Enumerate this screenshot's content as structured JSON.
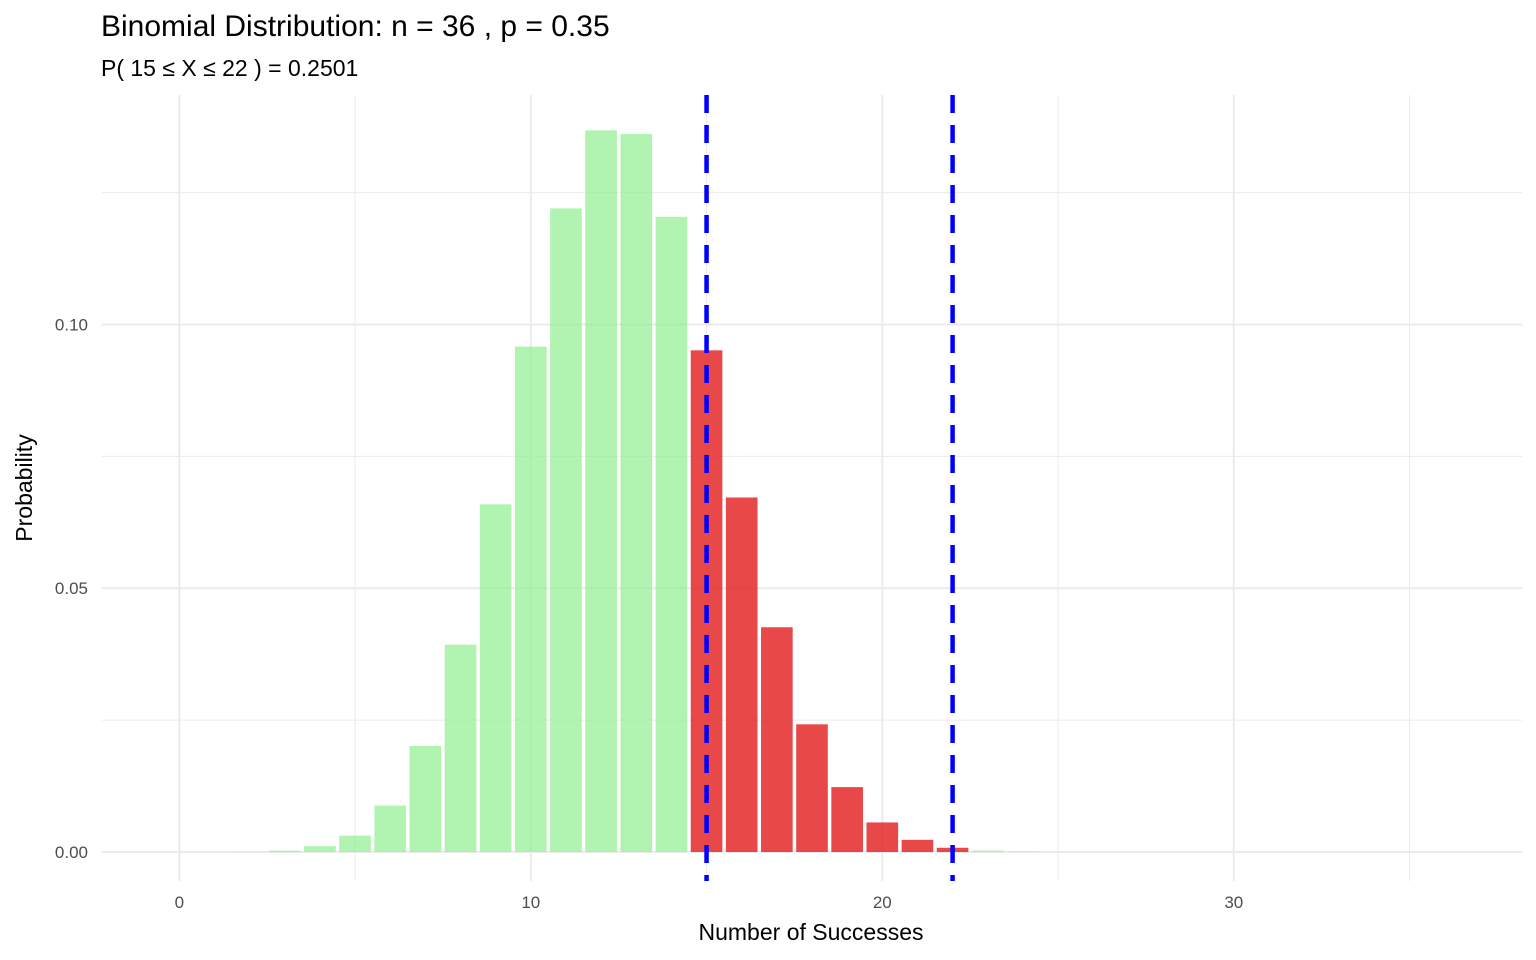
{
  "chart_data": {
    "type": "bar",
    "title": "Binomial Distribution: n = 36 , p = 0.35",
    "subtitle": "P( 15  ≤ X ≤  22 ) = 0.2501",
    "xlabel": "Number of Successes",
    "ylabel": "Probability",
    "xlim": [
      -2.2,
      38.2
    ],
    "ylim": [
      -0.0055,
      0.1435
    ],
    "x_ticks": [
      0,
      10,
      20,
      30
    ],
    "x_tick_labels": [
      "0",
      "10",
      "20",
      "30"
    ],
    "y_ticks": [
      0.0,
      0.05,
      0.1
    ],
    "y_tick_labels": [
      "0.00",
      "0.05",
      "0.10"
    ],
    "grid": true,
    "legend": "none",
    "x": [
      0,
      1,
      2,
      3,
      4,
      5,
      6,
      7,
      8,
      9,
      10,
      11,
      12,
      13,
      14,
      15,
      16,
      17,
      18,
      19,
      20,
      21,
      22,
      23,
      24,
      25,
      26,
      27,
      28,
      29,
      30,
      31,
      32,
      33,
      34,
      35,
      36
    ],
    "values": [
      2e-07,
      4e-06,
      4e-05,
      0.00025,
      0.0011,
      0.0031,
      0.0088,
      0.0201,
      0.0393,
      0.0659,
      0.0958,
      0.122,
      0.1368,
      0.1361,
      0.1204,
      0.0951,
      0.0672,
      0.0426,
      0.0242,
      0.0123,
      0.0056,
      0.0023,
      0.0008,
      0.00026,
      8e-05,
      2e-05,
      4e-06,
      8e-07,
      1e-07,
      0,
      0,
      0,
      0,
      0,
      0,
      0,
      0
    ],
    "highlight_range": [
      15,
      22
    ],
    "vlines": [
      15,
      22
    ],
    "colors": {
      "outside_range": "#90EE90",
      "in_range": "#E31A1C",
      "vline": "#0000FF",
      "grid": "#EBEBEB"
    }
  }
}
